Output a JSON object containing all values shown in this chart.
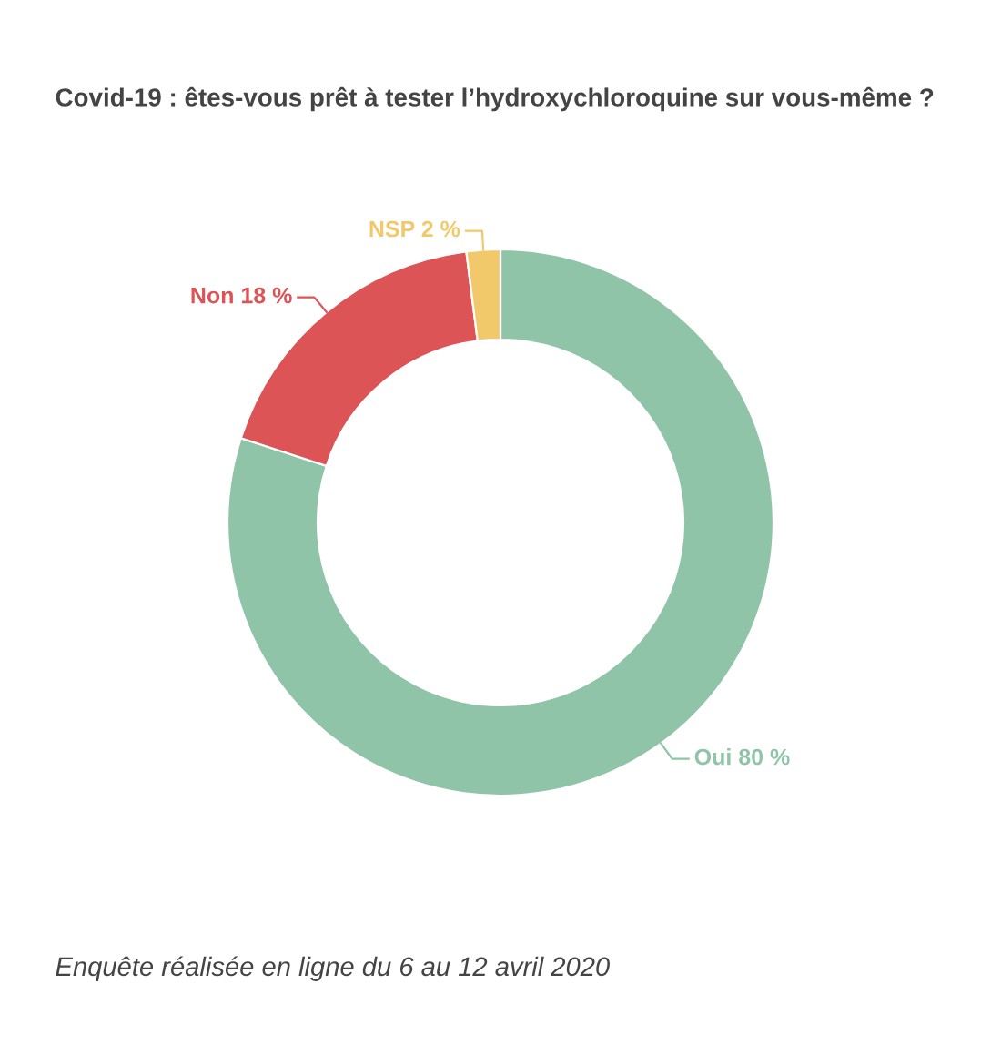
{
  "chart_data": {
    "type": "donut",
    "title": "Covid-19 : êtes-vous prêt à tester l’hydroxychloroquine sur vous-même ?",
    "categories": [
      "Oui",
      "Non",
      "NSP"
    ],
    "values": [
      80,
      18,
      2
    ],
    "value_labels": [
      "80 %",
      "18 %",
      "2 %"
    ],
    "colors": [
      "#8fc4a8",
      "#dc5456",
      "#f2c96a"
    ],
    "legend": false,
    "annotations": [
      "Enquête réalisée en ligne du 6 au 12 avril 2020"
    ]
  }
}
